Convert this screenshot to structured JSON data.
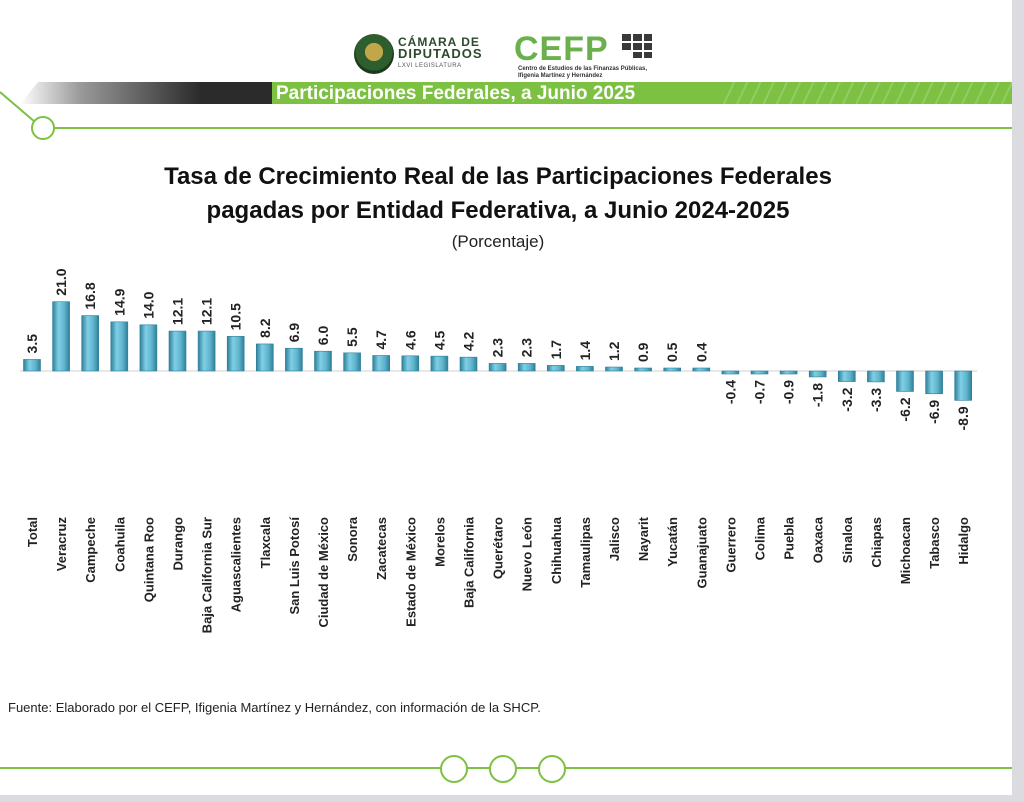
{
  "header": {
    "logo_camara_line1": "CÁMARA DE",
    "logo_camara_line2": "DIPUTADOS",
    "logo_camara_line3": "LXVI LEGISLATURA",
    "logo_cefp": "CEFP",
    "logo_cefp_subtitle": "Centro de Estudios de las Finanzas Públicas, Ifigenia Martínez y Hernández",
    "banner_title": "Participaciones Federales, a Junio 2025"
  },
  "colors": {
    "accent_green": "#7dc142",
    "bar_fill": "#5fb3cc",
    "bar_dark": "#2f7f99"
  },
  "chart_data": {
    "type": "bar",
    "title_line1": "Tasa de Crecimiento Real de las Participaciones Federales",
    "title_line2": "pagadas por Entidad Federativa, a Junio 2024-2025",
    "subtitle": "(Porcentaje)",
    "categories": [
      "Total",
      "Veracruz",
      "Campeche",
      "Coahuila",
      "Quintana Roo",
      "Durango",
      "Baja California Sur",
      "Aguascalientes",
      "Tlaxcala",
      "San Luis Potosí",
      "Ciudad de México",
      "Sonora",
      "Zacatecas",
      "Estado de México",
      "Morelos",
      "Baja California",
      "Querétaro",
      "Nuevo León",
      "Chihuahua",
      "Tamaulipas",
      "Jalisco",
      "Nayarit",
      "Yucatán",
      "Guanajuato",
      "Guerrero",
      "Colima",
      "Puebla",
      "Oaxaca",
      "Sinaloa",
      "Chiapas",
      "Michoacan",
      "Tabasco",
      "Hidalgo"
    ],
    "values": [
      3.5,
      21.0,
      16.8,
      14.9,
      14.0,
      12.1,
      12.1,
      10.5,
      8.2,
      6.9,
      6.0,
      5.5,
      4.7,
      4.6,
      4.5,
      4.2,
      2.3,
      2.3,
      1.7,
      1.4,
      1.2,
      0.9,
      0.5,
      0.4,
      -0.4,
      -0.7,
      -0.9,
      -1.8,
      -3.2,
      -3.3,
      -6.2,
      -6.9,
      -8.9
    ],
    "value_labels": [
      "3.5",
      "21.0",
      "16.8",
      "14.9",
      "14.0",
      "12.1",
      "12.1",
      "10.5",
      "8.2",
      "6.9",
      "6.0",
      "5.5",
      "4.7",
      "4.6",
      "4.5",
      "4.2",
      "2.3",
      "2.3",
      "1.7",
      "1.4",
      "1.2",
      "0.9",
      "0.5",
      "0.4",
      "-0.4",
      "-0.7",
      "-0.9",
      "-1.8",
      "-3.2",
      "-3.3",
      "-6.2",
      "-6.9",
      "-8.9"
    ],
    "ylim": [
      -8.9,
      21.0
    ],
    "grid": false,
    "legend": "none"
  },
  "footer": {
    "source": "Fuente: Elaborado por el CEFP, Ifigenia Martínez y Hernández, con información de la SHCP."
  }
}
